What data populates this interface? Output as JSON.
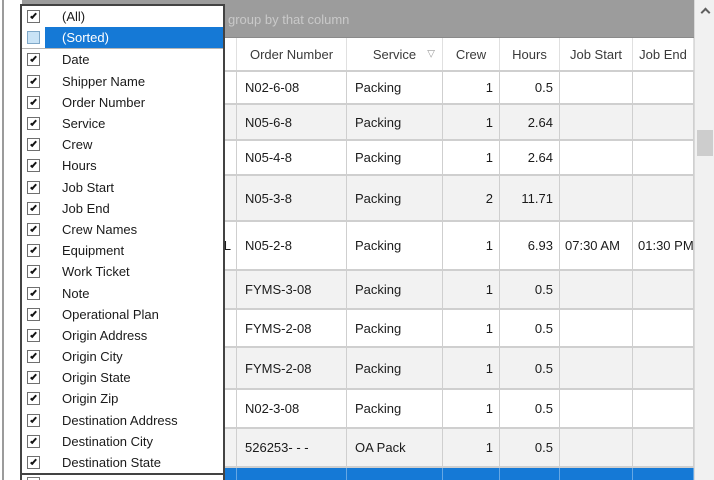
{
  "group_panel": {
    "visible_text": "group by that column"
  },
  "dropdown": {
    "items": [
      {
        "label": "(All)",
        "checked": true,
        "selected": false,
        "separator_after": false
      },
      {
        "label": "(Sorted)",
        "checked": false,
        "selected": true,
        "separator_after": true
      },
      {
        "label": "Date",
        "checked": true,
        "selected": false,
        "separator_after": false
      },
      {
        "label": "Shipper Name",
        "checked": true,
        "selected": false,
        "separator_after": false
      },
      {
        "label": "Order Number",
        "checked": true,
        "selected": false,
        "separator_after": false
      },
      {
        "label": "Service",
        "checked": true,
        "selected": false,
        "separator_after": false
      },
      {
        "label": "Crew",
        "checked": true,
        "selected": false,
        "separator_after": false
      },
      {
        "label": "Hours",
        "checked": true,
        "selected": false,
        "separator_after": false
      },
      {
        "label": "Job Start",
        "checked": true,
        "selected": false,
        "separator_after": false
      },
      {
        "label": "Job End",
        "checked": true,
        "selected": false,
        "separator_after": false
      },
      {
        "label": "Crew Names",
        "checked": true,
        "selected": false,
        "separator_after": false
      },
      {
        "label": "Equipment",
        "checked": true,
        "selected": false,
        "separator_after": false
      },
      {
        "label": "Work Ticket",
        "checked": true,
        "selected": false,
        "separator_after": false
      },
      {
        "label": "Note",
        "checked": true,
        "selected": false,
        "separator_after": false
      },
      {
        "label": "Operational Plan",
        "checked": true,
        "selected": false,
        "separator_after": false
      },
      {
        "label": "Origin Address",
        "checked": true,
        "selected": false,
        "separator_after": false
      },
      {
        "label": "Origin City",
        "checked": true,
        "selected": false,
        "separator_after": false
      },
      {
        "label": "Origin State",
        "checked": true,
        "selected": false,
        "separator_after": false
      },
      {
        "label": "Origin Zip",
        "checked": true,
        "selected": false,
        "separator_after": false
      },
      {
        "label": "Destination Address",
        "checked": true,
        "selected": false,
        "separator_after": false
      },
      {
        "label": "Destination City",
        "checked": true,
        "selected": false,
        "separator_after": false
      },
      {
        "label": "Destination State",
        "checked": true,
        "selected": false,
        "separator_after": false
      }
    ]
  },
  "grid": {
    "columns": [
      {
        "key": "shipper",
        "label": "",
        "sort_indicator": ""
      },
      {
        "key": "order",
        "label": "Order Number",
        "sort_indicator": ""
      },
      {
        "key": "service",
        "label": "Service",
        "sort_indicator": "▽"
      },
      {
        "key": "crew",
        "label": "Crew",
        "sort_indicator": ""
      },
      {
        "key": "hours",
        "label": "Hours",
        "sort_indicator": ""
      },
      {
        "key": "start",
        "label": "Job Start",
        "sort_indicator": ""
      },
      {
        "key": "end",
        "label": "Job End",
        "sort_indicator": ""
      }
    ],
    "rows": [
      {
        "shipper": "",
        "order": "N02-6-08",
        "service": "Packing",
        "crew": "1",
        "hours": "0.5",
        "start": "",
        "end": ""
      },
      {
        "shipper": "",
        "order": "N05-6-8",
        "service": "Packing",
        "crew": "1",
        "hours": "2.64",
        "start": "",
        "end": ""
      },
      {
        "shipper": "",
        "order": "N05-4-8",
        "service": "Packing",
        "crew": "1",
        "hours": "2.64",
        "start": "",
        "end": ""
      },
      {
        "shipper": "",
        "order": "N05-3-8",
        "service": "Packing",
        "crew": "2",
        "hours": "11.71",
        "start": "",
        "end": ""
      },
      {
        "shipper": "L",
        "order": "N05-2-8",
        "service": "Packing",
        "crew": "1",
        "hours": "6.93",
        "start": "07:30 AM",
        "end": "01:30 PM"
      },
      {
        "shipper": "",
        "order": "FYMS-3-08",
        "service": "Packing",
        "crew": "1",
        "hours": "0.5",
        "start": "",
        "end": ""
      },
      {
        "shipper": "",
        "order": "FYMS-2-08",
        "service": "Packing",
        "crew": "1",
        "hours": "0.5",
        "start": "",
        "end": ""
      },
      {
        "shipper": "",
        "order": "FYMS-2-08",
        "service": "Packing",
        "crew": "1",
        "hours": "0.5",
        "start": "",
        "end": ""
      },
      {
        "shipper": "",
        "order": "N02-3-08",
        "service": "Packing",
        "crew": "1",
        "hours": "0.5",
        "start": "",
        "end": ""
      },
      {
        "shipper": "",
        "order": "526253- - -",
        "service": "OA Pack",
        "crew": "1",
        "hours": "0.5",
        "start": "",
        "end": ""
      }
    ],
    "selected_row_present": true
  },
  "scrollbar": {
    "up_arrow": "chevron-up"
  },
  "colors": {
    "selection_blue": "#1579d6",
    "group_panel_bg": "#9c9c9c",
    "row_alt_bg": "#f2f2f2",
    "grid_line": "#cfcfcf",
    "scrollbar_thumb": "#cdcdcd",
    "scrollbar_track": "#f1f1f1"
  }
}
